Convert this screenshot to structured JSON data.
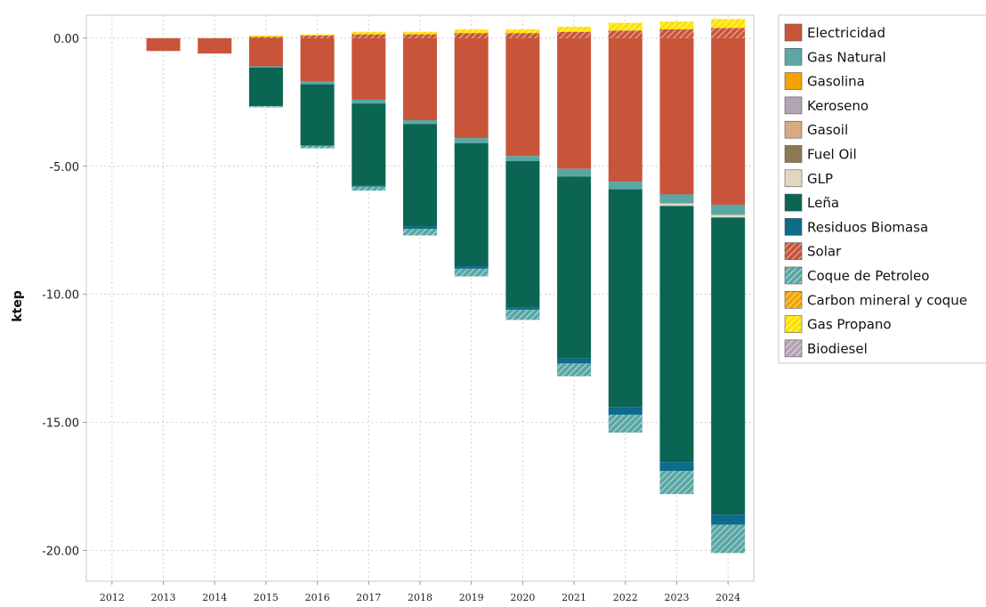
{
  "chart_data": {
    "type": "bar",
    "stacked": true,
    "title": "",
    "xlabel": "",
    "ylabel": "ktep",
    "ylim": [
      -21.2,
      0.9
    ],
    "yticks": [
      0,
      -5,
      -10,
      -15,
      -20
    ],
    "ytick_labels": [
      "0.00",
      "-5.00",
      "-10.00",
      "-15.00",
      "-20.00"
    ],
    "grid": true,
    "legend_position": "right",
    "categories": [
      "2012",
      "2013",
      "2014",
      "2015",
      "2016",
      "2017",
      "2018",
      "2019",
      "2020",
      "2021",
      "2022",
      "2023",
      "2024"
    ],
    "series": [
      {
        "name": "Electricidad",
        "color": "#c8553a",
        "pattern": "solid",
        "values": [
          0,
          -0.5,
          -0.6,
          -1.1,
          -1.7,
          -2.4,
          -3.2,
          -3.9,
          -4.6,
          -5.1,
          -5.6,
          -6.1,
          -6.5
        ]
      },
      {
        "name": "Gas Natural",
        "color": "#5aa7a4",
        "pattern": "solid",
        "values": [
          0,
          0,
          0,
          -0.05,
          -0.1,
          -0.15,
          -0.15,
          -0.2,
          -0.2,
          -0.3,
          -0.3,
          -0.35,
          -0.4
        ]
      },
      {
        "name": "Gasolina",
        "color": "#f4a300",
        "pattern": "solid",
        "values": [
          0,
          0,
          0,
          0,
          0,
          0,
          0,
          0,
          0,
          0,
          0,
          0,
          0
        ]
      },
      {
        "name": "Keroseno",
        "color": "#b5a3b5",
        "pattern": "solid",
        "values": [
          0,
          0,
          0,
          0,
          0,
          0,
          0,
          0,
          0,
          0,
          0,
          0,
          0
        ]
      },
      {
        "name": "Gasoil",
        "color": "#d8aa80",
        "pattern": "solid",
        "values": [
          0,
          0,
          0,
          0,
          0,
          0,
          0,
          0,
          0,
          0,
          0,
          0,
          0
        ]
      },
      {
        "name": "Fuel Oil",
        "color": "#8c7a50",
        "pattern": "solid",
        "values": [
          0,
          0,
          0,
          0,
          0,
          0,
          0,
          0,
          0,
          0,
          0,
          0,
          0
        ]
      },
      {
        "name": "GLP",
        "color": "#e3d7c0",
        "pattern": "solid",
        "values": [
          0,
          0,
          0,
          0,
          0,
          0,
          0,
          0,
          0,
          0,
          0,
          -0.1,
          -0.1
        ]
      },
      {
        "name": "Leña",
        "color": "#0a6652",
        "pattern": "solid",
        "values": [
          0,
          0,
          0,
          -1.5,
          -2.4,
          -3.2,
          -4.0,
          -4.8,
          -5.7,
          -7.1,
          -8.5,
          -10.0,
          -11.6
        ]
      },
      {
        "name": "Residuos Biomasa",
        "color": "#0d6b8c",
        "pattern": "solid",
        "values": [
          0,
          0,
          0,
          0,
          0,
          -0.05,
          -0.1,
          -0.1,
          -0.1,
          -0.2,
          -0.3,
          -0.35,
          -0.4
        ]
      },
      {
        "name": "Solar",
        "color": "#c8553a",
        "pattern": "hatch",
        "values": [
          0,
          0,
          0,
          0.05,
          0.1,
          0.15,
          0.15,
          0.2,
          0.2,
          0.25,
          0.3,
          0.35,
          0.4
        ]
      },
      {
        "name": "Coque de Petroleo",
        "color": "#5aa7a4",
        "pattern": "hatch",
        "values": [
          0,
          0,
          0,
          -0.05,
          -0.1,
          -0.15,
          -0.25,
          -0.3,
          -0.4,
          -0.5,
          -0.7,
          -0.9,
          -1.1
        ]
      },
      {
        "name": "Carbon mineral y coque",
        "color": "#f4a300",
        "pattern": "hatch",
        "values": [
          0,
          0,
          0,
          0,
          0,
          0,
          0,
          0,
          0,
          0,
          0,
          0,
          0
        ]
      },
      {
        "name": "Gas Propano",
        "color": "#ffe100",
        "pattern": "hatch",
        "values": [
          0,
          0,
          0,
          0.05,
          0.05,
          0.1,
          0.1,
          0.15,
          0.15,
          0.2,
          0.3,
          0.3,
          0.35
        ]
      },
      {
        "name": "Biodiesel",
        "color": "#b5a3b5",
        "pattern": "hatch",
        "values": [
          0,
          0,
          0,
          0,
          0,
          0,
          0,
          0,
          0,
          0,
          0,
          0,
          0
        ]
      }
    ]
  }
}
